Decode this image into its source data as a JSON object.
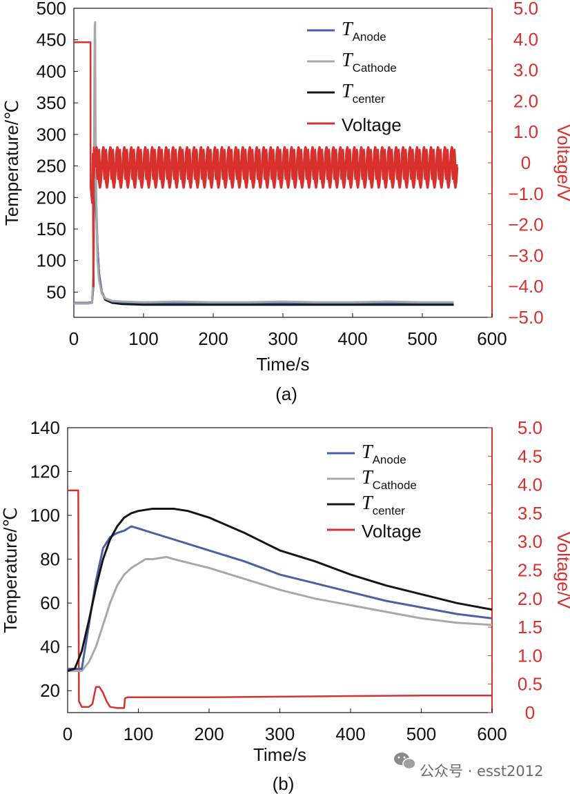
{
  "colors": {
    "anode": "#4a5fa8",
    "cathode": "#a8a8a8",
    "center": "#151515",
    "voltage": "#d8302c"
  },
  "watermark": {
    "text": "公众号 · esst2012",
    "icon": "wechat-icon"
  },
  "chart_data": [
    {
      "type": "line",
      "panel_label": "(a)",
      "xlabel": "Time/s",
      "ylabel": "Temperature/℃",
      "y2label": "Voltage/V",
      "xlim": [
        0,
        600
      ],
      "ylim": [
        10,
        500
      ],
      "y2lim": [
        -5.0,
        5.0
      ],
      "x_ticks": [
        0,
        100,
        200,
        300,
        400,
        500,
        600
      ],
      "x_tick_labels": [
        "0",
        "100",
        "200",
        "300",
        "400",
        "500",
        "600"
      ],
      "y_ticks": [
        50,
        100,
        150,
        200,
        250,
        300,
        350,
        400,
        450,
        500
      ],
      "y_tick_labels": [
        "50",
        "100",
        "150",
        "200",
        "250",
        "300",
        "350",
        "400",
        "450",
        "500"
      ],
      "y2_ticks": [
        5,
        4,
        3,
        2,
        1,
        0,
        -1,
        -2,
        -3,
        -4,
        -5
      ],
      "y2_tick_labels": [
        "5.0",
        "4.0",
        "3.0",
        "2.0",
        "1.0",
        "0",
        "−1.0",
        "−2.0",
        "−3.0",
        "−4.0",
        "−5.0"
      ],
      "legend": {
        "position": "top-right",
        "entries": [
          {
            "symbol": "T",
            "sub": "Anode",
            "series": "anode"
          },
          {
            "symbol": "T",
            "sub": "Cathode",
            "series": "cathode"
          },
          {
            "symbol": "T",
            "sub": "center",
            "series": "center"
          },
          {
            "symbol": "",
            "sub": "",
            "label": "Voltage",
            "series": "voltage"
          }
        ]
      },
      "series": [
        {
          "name": "T_Anode",
          "key": "anode",
          "axis": "left",
          "x": [
            0,
            20,
            26,
            28,
            29,
            30,
            31,
            32,
            34,
            36,
            40,
            45,
            55,
            70,
            100,
            150,
            200,
            250,
            300,
            350,
            400,
            450,
            500,
            545
          ],
          "y": [
            33,
            33,
            34,
            60,
            200,
            350,
            300,
            200,
            120,
            80,
            50,
            40,
            35,
            34,
            33,
            33,
            33,
            33,
            33,
            33,
            33,
            33,
            33,
            33
          ]
        },
        {
          "name": "T_Cathode",
          "key": "cathode",
          "axis": "left",
          "x": [
            0,
            20,
            26,
            28,
            29,
            30,
            30.5,
            31,
            32,
            34,
            36,
            40,
            45,
            55,
            70,
            100,
            150,
            200,
            250,
            300,
            350,
            400,
            450,
            500,
            545
          ],
          "y": [
            32,
            32,
            33,
            80,
            300,
            470,
            478,
            350,
            200,
            100,
            70,
            48,
            40,
            36,
            35,
            34,
            35,
            34,
            34,
            35,
            34,
            34,
            35,
            34,
            34
          ]
        },
        {
          "name": "T_center",
          "key": "center",
          "axis": "left",
          "x": [
            0,
            20,
            26,
            28,
            29,
            30,
            31,
            32,
            34,
            36,
            40,
            45,
            55,
            70,
            100,
            150,
            200,
            250,
            300,
            350,
            400,
            450,
            500,
            545
          ],
          "y": [
            32,
            32,
            33,
            60,
            200,
            340,
            280,
            180,
            120,
            80,
            50,
            38,
            33,
            31,
            30,
            30,
            30,
            30,
            30,
            30,
            30,
            30,
            30,
            30
          ]
        },
        {
          "name": "Voltage",
          "key": "voltage",
          "axis": "right",
          "segments": [
            {
              "x": [
                0,
                24,
                24,
                26,
                27,
                28,
                28.5,
                29,
                30
              ],
              "y": [
                3.9,
                3.9,
                -0.8,
                -1.3,
                0.3,
                -4.0,
                0.5,
                -0.5,
                0.3
              ]
            }
          ],
          "oscillation": {
            "x_start": 30,
            "x_end": 550,
            "period": 10,
            "high": 0.5,
            "low": -0.8
          }
        }
      ]
    },
    {
      "type": "line",
      "panel_label": "(b)",
      "xlabel": "Time/s",
      "ylabel": "Temperature/℃",
      "y2label": "Voltage/V",
      "xlim": [
        0,
        600
      ],
      "ylim": [
        10,
        140
      ],
      "y2lim": [
        0,
        5.0
      ],
      "x_ticks": [
        0,
        100,
        200,
        300,
        400,
        500,
        600
      ],
      "x_tick_labels": [
        "0",
        "100",
        "200",
        "300",
        "400",
        "500",
        "600"
      ],
      "y_ticks": [
        20,
        40,
        60,
        80,
        100,
        120,
        140
      ],
      "y_tick_labels": [
        "20",
        "40",
        "60",
        "80",
        "100",
        "120",
        "140"
      ],
      "y2_ticks": [
        5,
        4.5,
        4,
        3.5,
        3,
        2.5,
        2,
        1.5,
        1,
        0.5,
        0
      ],
      "y2_tick_labels": [
        "5.0",
        "4.5",
        "4.0",
        "3.5",
        "3.0",
        "2.5",
        "2.0",
        "1.5",
        "1.0",
        "0.5",
        "0"
      ],
      "legend": {
        "position": "top-right",
        "entries": [
          {
            "symbol": "T",
            "sub": "Anode",
            "series": "anode"
          },
          {
            "symbol": "T",
            "sub": "Cathode",
            "series": "cathode"
          },
          {
            "symbol": "T",
            "sub": "center",
            "series": "center"
          },
          {
            "symbol": "",
            "sub": "",
            "label": "Voltage",
            "series": "voltage"
          }
        ]
      },
      "series": [
        {
          "name": "T_Anode",
          "key": "anode",
          "axis": "left",
          "x": [
            0,
            10,
            20,
            30,
            40,
            50,
            60,
            70,
            80,
            90,
            100,
            120,
            150,
            200,
            250,
            300,
            350,
            400,
            450,
            500,
            550,
            600
          ],
          "y": [
            30,
            30,
            30,
            50,
            70,
            85,
            90,
            92,
            93,
            95,
            94,
            92,
            89,
            84,
            79,
            73,
            69,
            65,
            61,
            58,
            55,
            53
          ]
        },
        {
          "name": "T_Cathode",
          "key": "cathode",
          "axis": "left",
          "x": [
            0,
            10,
            20,
            30,
            40,
            50,
            60,
            70,
            80,
            90,
            100,
            110,
            120,
            140,
            150,
            200,
            250,
            300,
            350,
            400,
            450,
            500,
            550,
            600
          ],
          "y": [
            29,
            29,
            29,
            33,
            40,
            50,
            60,
            68,
            73,
            76,
            78,
            80,
            80,
            81,
            80,
            76,
            71,
            66,
            62,
            59,
            56,
            53,
            51,
            50
          ]
        },
        {
          "name": "T_center",
          "key": "center",
          "axis": "left",
          "x": [
            0,
            10,
            20,
            30,
            40,
            50,
            60,
            70,
            80,
            90,
            100,
            120,
            150,
            170,
            200,
            250,
            300,
            350,
            400,
            450,
            500,
            550,
            600
          ],
          "y": [
            29,
            30,
            38,
            52,
            67,
            80,
            89,
            95,
            99,
            101,
            102,
            103,
            103,
            102,
            99,
            92,
            84,
            79,
            73,
            68,
            64,
            60,
            57
          ]
        },
        {
          "name": "Voltage",
          "key": "voltage",
          "axis": "right",
          "x": [
            0,
            15,
            16,
            20,
            30,
            35,
            40,
            45,
            50,
            55,
            60,
            70,
            80,
            81,
            85,
            100,
            200,
            300,
            400,
            500,
            600
          ],
          "y": [
            3.9,
            3.9,
            0.2,
            0.1,
            0.1,
            0.15,
            0.45,
            0.45,
            0.35,
            0.2,
            0.1,
            0.08,
            0.08,
            0.25,
            0.27,
            0.27,
            0.27,
            0.28,
            0.29,
            0.3,
            0.3
          ]
        }
      ]
    }
  ]
}
